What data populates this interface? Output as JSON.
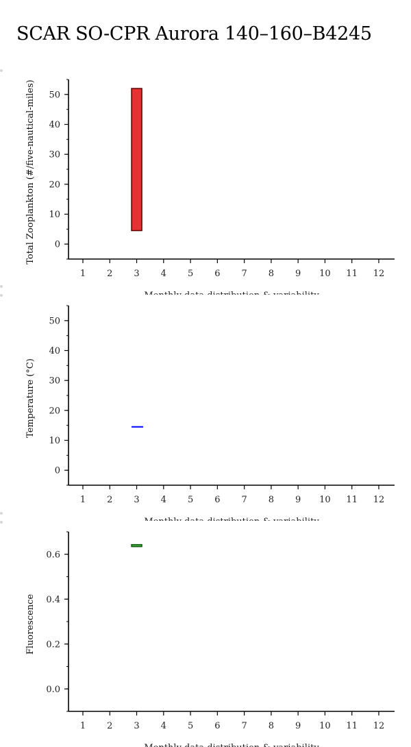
{
  "page": {
    "title": "SCAR SO-CPR Aurora 140–160–B4245"
  },
  "chart_data": [
    {
      "type": "bar",
      "ylabel": "Total Zooplankton (#/five-nautical-miles)",
      "xlabel": "Monthly data distribution & variability",
      "x_ticks": [
        "1",
        "2",
        "3",
        "4",
        "5",
        "6",
        "7",
        "8",
        "9",
        "10",
        "11",
        "12"
      ],
      "y_ticks": [
        0,
        10,
        20,
        30,
        40,
        50
      ],
      "y_tick_labels": [
        "0",
        "10",
        "20",
        "30",
        "40",
        "50"
      ],
      "ylim": [
        -5,
        55
      ],
      "minor_ticks": true,
      "grid": false,
      "series": [
        {
          "month": 3,
          "low": 4.5,
          "high": 52,
          "fill": "#e63232",
          "stroke": "#5a0000"
        }
      ]
    },
    {
      "type": "bar",
      "ylabel": "Temperature (°C)",
      "xlabel": "Monthly data distribution & variability",
      "x_ticks": [
        "1",
        "2",
        "3",
        "4",
        "5",
        "6",
        "7",
        "8",
        "9",
        "10",
        "11",
        "12"
      ],
      "y_ticks": [
        0,
        10,
        20,
        30,
        40,
        50
      ],
      "y_tick_labels": [
        "0",
        "10",
        "20",
        "30",
        "40",
        "50"
      ],
      "ylim": [
        -5,
        55
      ],
      "minor_ticks": true,
      "grid": false,
      "series": [
        {
          "month": 3,
          "low": 14.5,
          "high": 14.5,
          "fill": "#1a1aff",
          "stroke": "#0000cc"
        }
      ]
    },
    {
      "type": "bar",
      "ylabel": "Fluorescence",
      "xlabel": "Monthly data distribution & variability",
      "x_ticks": [
        "1",
        "2",
        "3",
        "4",
        "5",
        "6",
        "7",
        "8",
        "9",
        "10",
        "11",
        "12"
      ],
      "y_ticks": [
        0,
        0.2,
        0.4,
        0.6
      ],
      "y_tick_labels": [
        "0.0",
        "0.2",
        "0.4",
        "0.6"
      ],
      "ylim": [
        -0.1,
        0.7
      ],
      "minor_ticks": true,
      "grid": false,
      "series": [
        {
          "month": 3,
          "low": 0.634,
          "high": 0.643,
          "fill": "#3cb43c",
          "stroke": "#145a14"
        }
      ]
    }
  ]
}
